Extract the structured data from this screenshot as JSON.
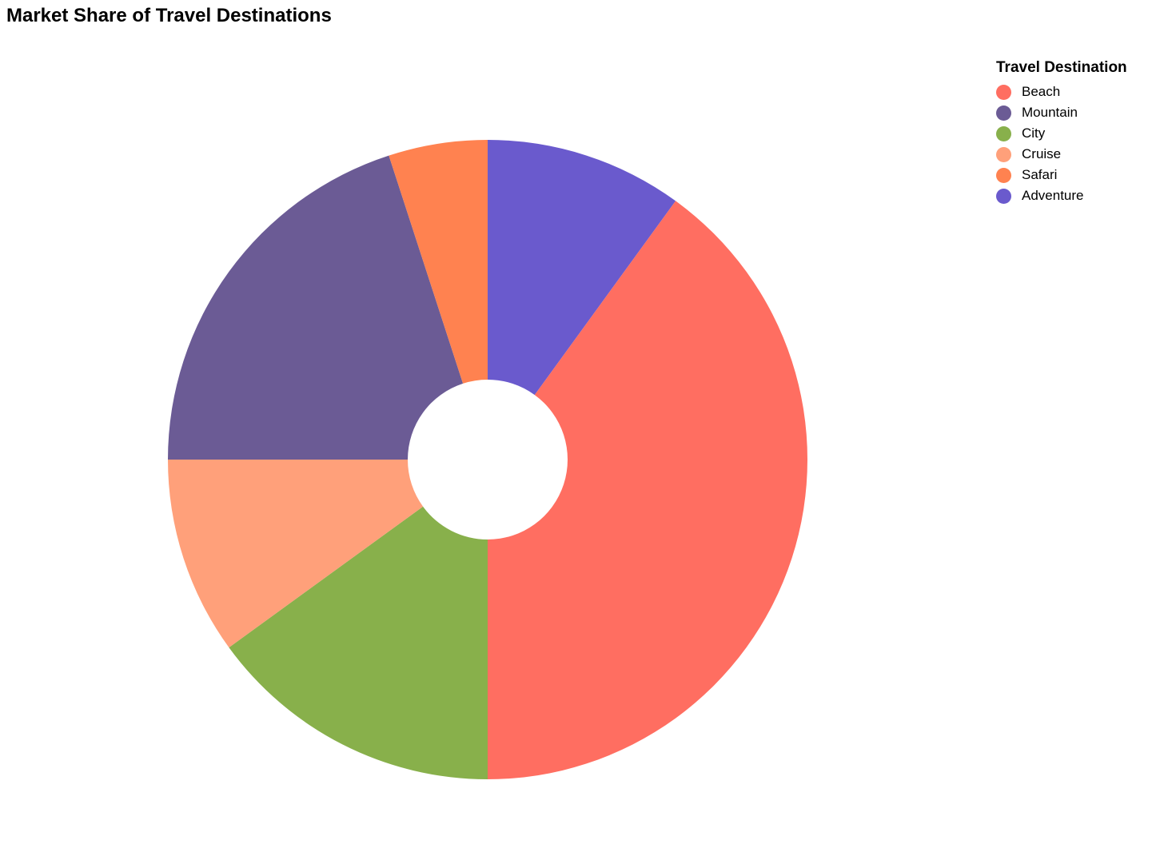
{
  "chart_data": {
    "type": "pie",
    "title": "Market Share of Travel Destinations",
    "legend_title": "Travel Destination",
    "legend_position": "top-right",
    "inner_radius_ratio": 0.25,
    "categories": [
      "Beach",
      "Mountain",
      "City",
      "Cruise",
      "Safari",
      "Adventure"
    ],
    "values": [
      40,
      20,
      15,
      10,
      5,
      10
    ],
    "colors": [
      "#ff6e61",
      "#6b5b95",
      "#88b04b",
      "#ffa07a",
      "#ff8250",
      "#6a5acd"
    ],
    "draw_order": [
      "Adventure",
      "Beach",
      "City",
      "Cruise",
      "Mountain",
      "Safari"
    ]
  }
}
